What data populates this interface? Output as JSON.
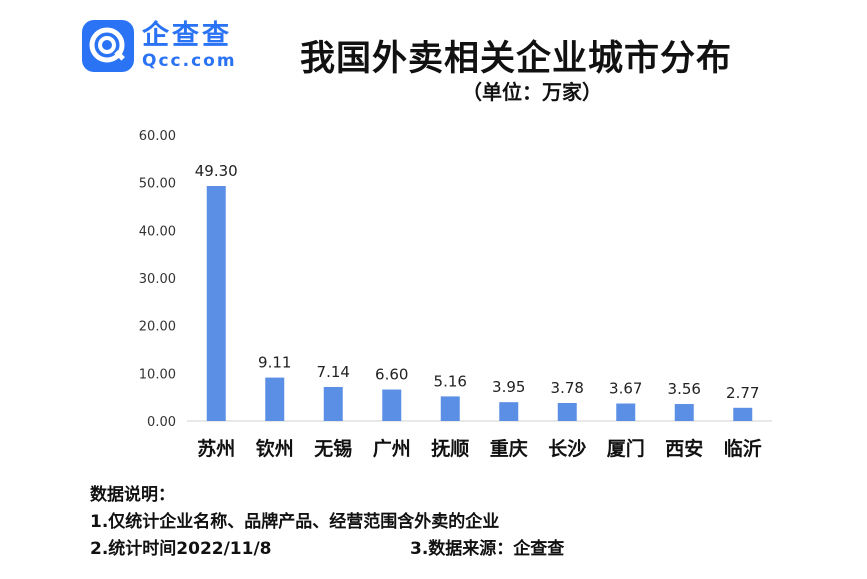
{
  "logo": {
    "text_cn": "企查查",
    "text_en": "Qcc.com",
    "color": "#2a73f4"
  },
  "title": "我国外卖相关企业城市分布",
  "subtitle": "（单位：万家）",
  "chart_data": {
    "type": "bar",
    "categories": [
      "苏州",
      "钦州",
      "无锡",
      "广州",
      "抚顺",
      "重庆",
      "长沙",
      "厦门",
      "西安",
      "临沂"
    ],
    "values": [
      49.3,
      9.11,
      7.14,
      6.6,
      5.16,
      3.95,
      3.78,
      3.67,
      3.56,
      2.77
    ],
    "value_labels": [
      "49.30",
      "9.11",
      "7.14",
      "6.60",
      "5.16",
      "3.95",
      "3.78",
      "3.67",
      "3.56",
      "2.77"
    ],
    "ylim": [
      0,
      60
    ],
    "yticks": [
      "0.00",
      "10.00",
      "20.00",
      "30.00",
      "40.00",
      "50.00",
      "60.00"
    ],
    "bar_color": "#5b8fe6",
    "grid": false
  },
  "notes": {
    "heading": "数据说明：",
    "line1": "1.仅统计企业名称、品牌产品、经营范围含外卖的企业",
    "line2": "2.统计时间2022/11/8",
    "line3": "3.数据来源：企查查"
  }
}
